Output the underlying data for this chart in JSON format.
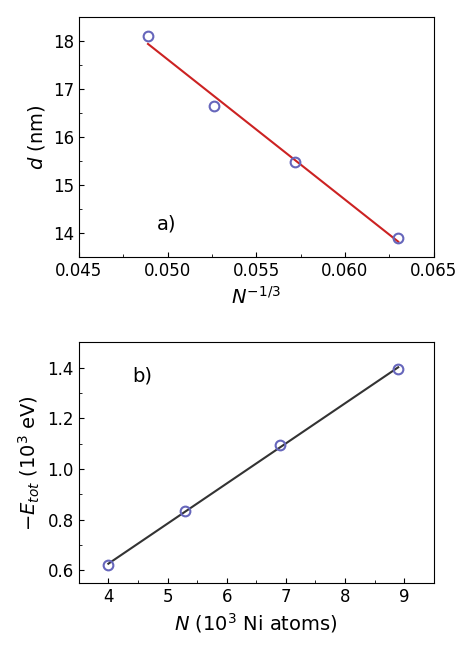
{
  "plot_a": {
    "x_data": [
      0.0489,
      0.0526,
      0.0572,
      0.063
    ],
    "y_data": [
      18.1,
      16.65,
      15.48,
      13.9
    ],
    "line_color": "#cc2222",
    "marker_color": "#6666bb",
    "marker_size": 7,
    "xlabel": "$N^{-1/3}$",
    "ylabel": "$d$ (nm)",
    "xlim": [
      0.045,
      0.065
    ],
    "ylim": [
      13.5,
      18.5
    ],
    "yticks": [
      14,
      15,
      16,
      17,
      18
    ],
    "xticks": [
      0.045,
      0.05,
      0.055,
      0.06,
      0.065
    ],
    "label": "a)"
  },
  "plot_b": {
    "x_data": [
      4.0,
      5.3,
      6.9,
      8.9
    ],
    "y_data": [
      0.62,
      0.835,
      1.095,
      1.395
    ],
    "line_color": "#333333",
    "marker_color": "#6666bb",
    "marker_size": 7,
    "xlabel": "$N$ (10$^3$ Ni atoms)",
    "ylabel": "$-E_{tot}$ (10$^3$ eV)",
    "xlim": [
      3.5,
      9.5
    ],
    "ylim": [
      0.55,
      1.5
    ],
    "yticks": [
      0.6,
      0.8,
      1.0,
      1.2,
      1.4
    ],
    "xticks": [
      4,
      5,
      6,
      7,
      8,
      9
    ],
    "label": "b)"
  },
  "figure_bg": "#ffffff",
  "axes_bg": "#ffffff",
  "tick_fontsize": 12,
  "label_fontsize": 14,
  "panel_label_fontsize": 14
}
